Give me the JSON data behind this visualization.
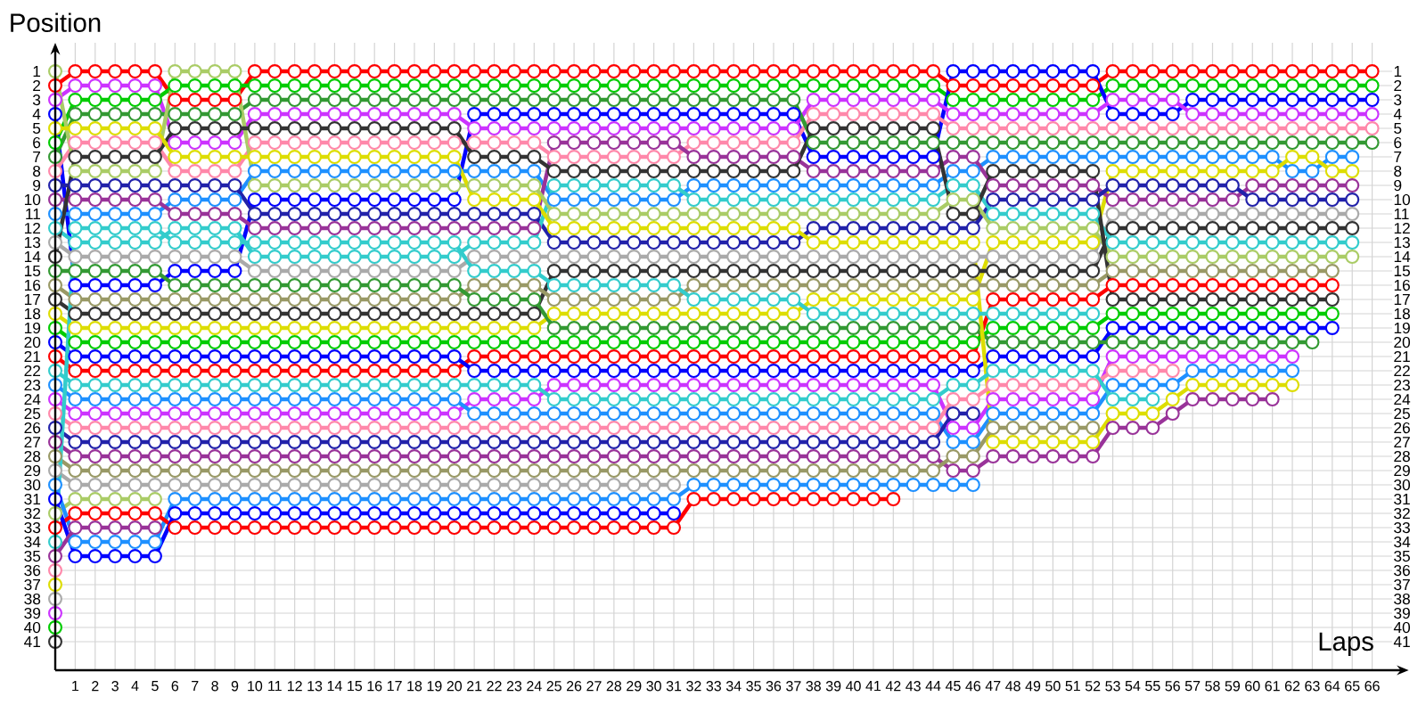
{
  "chart_data": {
    "type": "line",
    "xlabel": "Laps",
    "ylabel": "Position",
    "x": [
      0,
      1,
      2,
      3,
      4,
      5,
      6,
      7,
      8,
      9,
      10,
      11,
      12,
      13,
      14,
      15,
      16,
      17,
      18,
      19,
      20,
      21,
      22,
      23,
      24,
      25,
      26,
      27,
      28,
      29,
      30,
      31,
      32,
      33,
      34,
      35,
      36,
      37,
      38,
      39,
      40,
      41,
      42,
      43,
      44,
      45,
      46,
      47,
      48,
      49,
      50,
      51,
      52,
      53,
      54,
      55,
      56,
      57,
      58,
      59,
      60,
      61,
      62,
      63,
      64,
      65,
      66
    ],
    "xlim": [
      0,
      67
    ],
    "xticks": [
      1,
      2,
      3,
      4,
      5,
      6,
      7,
      8,
      9,
      10,
      11,
      12,
      13,
      14,
      15,
      16,
      17,
      18,
      19,
      20,
      21,
      22,
      23,
      24,
      25,
      26,
      27,
      28,
      29,
      30,
      31,
      32,
      33,
      34,
      35,
      36,
      37,
      38,
      39,
      40,
      41,
      42,
      43,
      44,
      45,
      46,
      47,
      48,
      49,
      50,
      51,
      52,
      53,
      54,
      55,
      56,
      57,
      58,
      59,
      60,
      61,
      62,
      63,
      64,
      65,
      66
    ],
    "ylim": [
      43,
      -1
    ],
    "yticks": [
      1,
      2,
      3,
      4,
      5,
      6,
      7,
      8,
      9,
      10,
      11,
      12,
      13,
      14,
      15,
      16,
      17,
      18,
      19,
      20,
      21,
      22,
      23,
      24,
      25,
      26,
      27,
      28,
      29,
      30,
      31,
      32,
      33,
      34,
      35,
      36,
      37,
      38,
      39,
      40,
      41
    ],
    "y2lim": [
      43,
      -1
    ],
    "y2ticks": [
      1,
      2,
      3,
      4,
      5,
      6,
      7,
      8,
      9,
      10,
      11,
      12,
      13,
      14,
      15,
      16,
      17,
      18,
      19,
      20,
      21,
      22,
      23,
      24,
      25,
      26,
      27,
      28,
      29,
      30,
      31,
      32,
      33,
      34,
      35,
      36,
      37,
      38,
      39,
      40,
      41
    ],
    "grid": true,
    "marker": "circle",
    "line_style": "solid",
    "series": [
      {
        "color": "#ff0000",
        "values": [
          2,
          1,
          1,
          1,
          1,
          1,
          3,
          3,
          3,
          3,
          1,
          1,
          1,
          1,
          1,
          1,
          1,
          1,
          1,
          1,
          1,
          1,
          1,
          1,
          1,
          1,
          1,
          1,
          1,
          1,
          1,
          1,
          1,
          1,
          1,
          1,
          1,
          1,
          1,
          1,
          1,
          1,
          1,
          1,
          1,
          2,
          2,
          2,
          2,
          2,
          2,
          2,
          2,
          1,
          1,
          1,
          1,
          1,
          1,
          1,
          1,
          1,
          1,
          1,
          1,
          1,
          1
        ]
      },
      {
        "color": "#00cc00",
        "values": [
          6,
          3,
          3,
          3,
          3,
          3,
          2,
          2,
          2,
          2,
          2,
          2,
          2,
          2,
          2,
          2,
          2,
          2,
          2,
          2,
          2,
          2,
          2,
          2,
          2,
          2,
          2,
          2,
          2,
          2,
          2,
          2,
          2,
          2,
          2,
          2,
          2,
          2,
          2,
          2,
          2,
          2,
          2,
          2,
          2,
          3,
          3,
          3,
          3,
          3,
          3,
          3,
          3,
          2,
          2,
          2,
          2,
          2,
          2,
          2,
          2,
          2,
          2,
          2,
          2,
          2,
          2
        ]
      },
      {
        "color": "#0000ff",
        "values": [
          4,
          16,
          16,
          16,
          16,
          16,
          15,
          15,
          15,
          15,
          10,
          10,
          10,
          10,
          10,
          10,
          10,
          10,
          10,
          10,
          10,
          4,
          4,
          4,
          4,
          4,
          4,
          4,
          4,
          4,
          4,
          4,
          4,
          4,
          4,
          4,
          4,
          4,
          7,
          7,
          7,
          7,
          7,
          7,
          7,
          1,
          1,
          1,
          1,
          1,
          1,
          1,
          1,
          4,
          4,
          4,
          4,
          3,
          3,
          3,
          3,
          3,
          3,
          3,
          3,
          3,
          3
        ]
      },
      {
        "color": "#cc33ff",
        "values": [
          3,
          2,
          2,
          2,
          2,
          2,
          6,
          6,
          6,
          6,
          4,
          4,
          4,
          4,
          4,
          4,
          4,
          4,
          4,
          4,
          4,
          5,
          5,
          5,
          5,
          5,
          5,
          5,
          5,
          5,
          5,
          5,
          5,
          5,
          5,
          5,
          5,
          5,
          3,
          3,
          3,
          3,
          3,
          3,
          3,
          4,
          4,
          4,
          4,
          4,
          4,
          4,
          4,
          3,
          3,
          3,
          3,
          4,
          4,
          4,
          4,
          4,
          4,
          4,
          4,
          4,
          4
        ]
      },
      {
        "color": "#ff88aa",
        "values": [
          8,
          6,
          6,
          6,
          6,
          6,
          8,
          8,
          8,
          8,
          6,
          6,
          6,
          6,
          6,
          6,
          6,
          6,
          6,
          6,
          6,
          6,
          6,
          6,
          6,
          7,
          7,
          7,
          7,
          7,
          7,
          7,
          6,
          6,
          6,
          6,
          6,
          6,
          4,
          4,
          4,
          4,
          4,
          4,
          4,
          5,
          5,
          5,
          5,
          5,
          5,
          5,
          5,
          5,
          5,
          5,
          5,
          5,
          5,
          5,
          5,
          5,
          5,
          5,
          5,
          5,
          5
        ]
      },
      {
        "color": "#339933",
        "values": [
          7,
          4,
          4,
          4,
          4,
          4,
          4,
          4,
          4,
          4,
          3,
          3,
          3,
          3,
          3,
          3,
          3,
          3,
          3,
          3,
          3,
          3,
          3,
          3,
          3,
          3,
          3,
          3,
          3,
          3,
          3,
          3,
          3,
          3,
          3,
          3,
          3,
          3,
          6,
          6,
          6,
          6,
          6,
          6,
          6,
          6,
          6,
          6,
          6,
          6,
          6,
          6,
          6,
          6,
          6,
          6,
          6,
          6,
          6,
          6,
          6,
          6,
          6,
          6,
          6,
          6,
          6
        ]
      },
      {
        "color": "#1e90ff",
        "values": [
          11,
          11,
          11,
          11,
          11,
          11,
          10,
          10,
          10,
          10,
          8,
          8,
          8,
          8,
          8,
          8,
          8,
          8,
          8,
          8,
          8,
          8,
          8,
          8,
          8,
          10,
          10,
          10,
          10,
          10,
          10,
          10,
          9,
          9,
          9,
          9,
          9,
          9,
          9,
          9,
          9,
          9,
          9,
          9,
          9,
          8,
          8,
          7,
          7,
          7,
          7,
          7,
          7,
          7,
          7,
          7,
          7,
          7,
          7,
          7,
          7,
          7,
          8,
          8,
          7,
          7,
          null
        ]
      },
      {
        "color": "#dddd00",
        "values": [
          18,
          19,
          19,
          19,
          19,
          19,
          19,
          19,
          19,
          19,
          19,
          19,
          19,
          19,
          19,
          19,
          19,
          19,
          19,
          19,
          19,
          19,
          19,
          19,
          19,
          18,
          18,
          18,
          18,
          18,
          18,
          18,
          18,
          18,
          18,
          18,
          18,
          18,
          17,
          17,
          17,
          17,
          17,
          17,
          17,
          17,
          17,
          13,
          13,
          13,
          13,
          13,
          13,
          8,
          8,
          8,
          8,
          8,
          8,
          8,
          8,
          8,
          7,
          7,
          8,
          8,
          null
        ]
      },
      {
        "color": "#993399",
        "values": [
          10,
          10,
          10,
          10,
          10,
          10,
          11,
          11,
          11,
          11,
          12,
          12,
          12,
          12,
          12,
          12,
          12,
          12,
          12,
          12,
          12,
          12,
          12,
          12,
          12,
          6,
          6,
          6,
          6,
          6,
          6,
          6,
          7,
          7,
          7,
          7,
          7,
          7,
          8,
          8,
          8,
          8,
          8,
          8,
          8,
          7,
          7,
          9,
          9,
          9,
          9,
          9,
          9,
          10,
          10,
          10,
          10,
          10,
          10,
          10,
          9,
          9,
          9,
          9,
          9,
          9,
          null
        ]
      },
      {
        "color": "#2222aa",
        "values": [
          9,
          9,
          9,
          9,
          9,
          9,
          9,
          9,
          9,
          9,
          11,
          11,
          11,
          11,
          11,
          11,
          11,
          11,
          11,
          11,
          11,
          11,
          11,
          11,
          11,
          13,
          13,
          13,
          13,
          13,
          13,
          13,
          13,
          13,
          13,
          13,
          13,
          13,
          12,
          12,
          12,
          12,
          12,
          12,
          12,
          12,
          12,
          10,
          10,
          10,
          10,
          10,
          10,
          9,
          9,
          9,
          9,
          9,
          9,
          9,
          10,
          10,
          10,
          10,
          10,
          10,
          null
        ]
      },
      {
        "color": "#aaaaaa",
        "values": [
          13,
          14,
          14,
          14,
          14,
          14,
          14,
          14,
          14,
          14,
          15,
          15,
          15,
          15,
          15,
          15,
          15,
          15,
          15,
          15,
          15,
          14,
          14,
          14,
          14,
          14,
          14,
          14,
          14,
          14,
          14,
          14,
          14,
          14,
          14,
          14,
          14,
          14,
          14,
          14,
          14,
          14,
          14,
          14,
          14,
          14,
          14,
          14,
          14,
          14,
          14,
          14,
          14,
          11,
          11,
          11,
          11,
          11,
          11,
          11,
          11,
          11,
          11,
          11,
          11,
          11,
          null
        ]
      },
      {
        "color": "#333333",
        "values": [
          17,
          18,
          18,
          18,
          18,
          18,
          18,
          18,
          18,
          18,
          18,
          18,
          18,
          18,
          18,
          18,
          18,
          18,
          18,
          18,
          18,
          18,
          18,
          18,
          18,
          15,
          15,
          15,
          15,
          15,
          15,
          15,
          15,
          15,
          15,
          15,
          15,
          15,
          15,
          15,
          15,
          15,
          15,
          15,
          15,
          15,
          15,
          15,
          15,
          15,
          15,
          15,
          15,
          12,
          12,
          12,
          12,
          12,
          12,
          12,
          12,
          12,
          12,
          12,
          12,
          12,
          null
        ]
      },
      {
        "color": "#33cccc",
        "values": [
          12,
          13,
          13,
          13,
          13,
          13,
          12,
          12,
          12,
          12,
          14,
          14,
          14,
          14,
          14,
          14,
          14,
          14,
          14,
          14,
          14,
          13,
          13,
          13,
          13,
          9,
          9,
          9,
          9,
          9,
          9,
          9,
          10,
          10,
          10,
          10,
          10,
          10,
          10,
          10,
          10,
          10,
          10,
          10,
          10,
          9,
          9,
          11,
          11,
          11,
          11,
          11,
          11,
          13,
          13,
          13,
          13,
          13,
          13,
          13,
          13,
          13,
          13,
          13,
          13,
          13,
          null
        ]
      },
      {
        "color": "#aacc66",
        "values": [
          1,
          8,
          8,
          8,
          8,
          8,
          1,
          1,
          1,
          1,
          9,
          9,
          9,
          9,
          9,
          9,
          9,
          9,
          9,
          9,
          9,
          9,
          9,
          9,
          9,
          11,
          11,
          11,
          11,
          11,
          11,
          11,
          11,
          11,
          11,
          11,
          11,
          11,
          11,
          11,
          11,
          11,
          11,
          11,
          11,
          10,
          10,
          12,
          12,
          12,
          12,
          12,
          12,
          14,
          14,
          14,
          14,
          14,
          14,
          14,
          14,
          14,
          14,
          14,
          14,
          14,
          null
        ]
      },
      {
        "color": "#999966",
        "values": [
          16,
          17,
          17,
          17,
          17,
          17,
          17,
          17,
          17,
          17,
          17,
          17,
          17,
          17,
          17,
          17,
          17,
          17,
          17,
          17,
          17,
          16,
          16,
          16,
          16,
          17,
          17,
          17,
          17,
          17,
          17,
          17,
          16,
          16,
          16,
          16,
          16,
          16,
          16,
          16,
          16,
          16,
          16,
          16,
          16,
          16,
          16,
          16,
          16,
          16,
          16,
          16,
          16,
          15,
          15,
          15,
          15,
          15,
          15,
          15,
          15,
          15,
          15,
          15,
          15,
          null,
          null
        ]
      },
      {
        "color": "#ff0000",
        "values": [
          21,
          22,
          22,
          22,
          22,
          22,
          22,
          22,
          22,
          22,
          22,
          22,
          22,
          22,
          22,
          22,
          22,
          22,
          22,
          22,
          22,
          21,
          21,
          21,
          21,
          21,
          21,
          21,
          21,
          21,
          21,
          21,
          21,
          21,
          21,
          21,
          21,
          21,
          21,
          21,
          21,
          21,
          21,
          21,
          21,
          21,
          21,
          17,
          17,
          17,
          17,
          17,
          17,
          16,
          16,
          16,
          16,
          16,
          16,
          16,
          16,
          16,
          16,
          16,
          16,
          null,
          null
        ]
      },
      {
        "color": "#333333",
        "values": [
          14,
          7,
          7,
          7,
          7,
          7,
          5,
          5,
          5,
          5,
          5,
          5,
          5,
          5,
          5,
          5,
          5,
          5,
          5,
          5,
          5,
          7,
          7,
          7,
          7,
          8,
          8,
          8,
          8,
          8,
          8,
          8,
          8,
          8,
          8,
          8,
          8,
          8,
          5,
          5,
          5,
          5,
          5,
          5,
          5,
          11,
          11,
          8,
          8,
          8,
          8,
          8,
          8,
          17,
          17,
          17,
          17,
          17,
          17,
          17,
          17,
          17,
          17,
          17,
          17,
          null,
          null
        ]
      },
      {
        "color": "#00cc00",
        "values": [
          19,
          20,
          20,
          20,
          20,
          20,
          20,
          20,
          20,
          20,
          20,
          20,
          20,
          20,
          20,
          20,
          20,
          20,
          20,
          20,
          20,
          20,
          20,
          20,
          20,
          20,
          20,
          20,
          20,
          20,
          20,
          20,
          20,
          20,
          20,
          20,
          20,
          20,
          20,
          20,
          20,
          20,
          20,
          20,
          20,
          20,
          20,
          19,
          19,
          19,
          19,
          19,
          19,
          18,
          18,
          18,
          18,
          18,
          18,
          18,
          18,
          18,
          18,
          18,
          18,
          null,
          null
        ]
      },
      {
        "color": "#0000ff",
        "values": [
          20,
          21,
          21,
          21,
          21,
          21,
          21,
          21,
          21,
          21,
          21,
          21,
          21,
          21,
          21,
          21,
          21,
          21,
          21,
          21,
          21,
          22,
          22,
          22,
          22,
          22,
          22,
          22,
          22,
          22,
          22,
          22,
          22,
          22,
          22,
          22,
          22,
          22,
          22,
          22,
          22,
          22,
          22,
          22,
          22,
          22,
          22,
          21,
          21,
          21,
          21,
          21,
          21,
          19,
          19,
          19,
          19,
          19,
          19,
          19,
          19,
          19,
          19,
          19,
          19,
          null,
          null
        ]
      },
      {
        "color": "#339933",
        "values": [
          15,
          15,
          15,
          15,
          15,
          15,
          16,
          16,
          16,
          16,
          16,
          16,
          16,
          16,
          16,
          16,
          16,
          16,
          16,
          16,
          16,
          17,
          17,
          17,
          17,
          19,
          19,
          19,
          19,
          19,
          19,
          19,
          19,
          19,
          19,
          19,
          19,
          19,
          19,
          19,
          19,
          19,
          19,
          19,
          19,
          19,
          19,
          20,
          20,
          20,
          20,
          20,
          20,
          20,
          20,
          20,
          20,
          20,
          20,
          20,
          20,
          20,
          20,
          20,
          null,
          null,
          null
        ]
      },
      {
        "color": "#cc33ff",
        "values": [
          24,
          25,
          25,
          25,
          25,
          25,
          25,
          25,
          25,
          25,
          25,
          25,
          25,
          25,
          25,
          25,
          25,
          25,
          25,
          25,
          25,
          24,
          24,
          24,
          24,
          23,
          23,
          23,
          23,
          23,
          23,
          23,
          23,
          23,
          23,
          23,
          23,
          23,
          23,
          23,
          23,
          23,
          23,
          23,
          23,
          26,
          26,
          24,
          24,
          24,
          24,
          24,
          24,
          21,
          21,
          21,
          21,
          21,
          21,
          21,
          21,
          21,
          21,
          null,
          null,
          null,
          null
        ]
      },
      {
        "color": "#1e90ff",
        "values": [
          23,
          24,
          24,
          24,
          24,
          24,
          24,
          24,
          24,
          24,
          24,
          24,
          24,
          24,
          24,
          24,
          24,
          24,
          24,
          24,
          24,
          25,
          25,
          25,
          25,
          25,
          25,
          25,
          25,
          25,
          25,
          25,
          25,
          25,
          25,
          25,
          25,
          25,
          25,
          25,
          25,
          25,
          25,
          25,
          25,
          27,
          27,
          25,
          25,
          25,
          25,
          25,
          25,
          23,
          23,
          23,
          23,
          22,
          22,
          22,
          22,
          22,
          22,
          null,
          null,
          null,
          null
        ]
      },
      {
        "color": "#dddd00",
        "values": [
          5,
          5,
          5,
          5,
          5,
          5,
          7,
          7,
          7,
          7,
          7,
          7,
          7,
          7,
          7,
          7,
          7,
          7,
          7,
          7,
          7,
          10,
          10,
          10,
          10,
          12,
          12,
          12,
          12,
          12,
          12,
          12,
          12,
          12,
          12,
          12,
          12,
          12,
          13,
          13,
          13,
          13,
          13,
          13,
          13,
          13,
          13,
          27,
          27,
          27,
          27,
          27,
          27,
          25,
          25,
          25,
          24,
          23,
          23,
          23,
          23,
          23,
          23,
          null,
          null,
          null,
          null
        ]
      },
      {
        "color": "#993399",
        "values": [
          27,
          28,
          28,
          28,
          28,
          28,
          28,
          28,
          28,
          28,
          28,
          28,
          28,
          28,
          28,
          28,
          28,
          28,
          28,
          28,
          28,
          28,
          28,
          28,
          28,
          28,
          28,
          28,
          28,
          28,
          28,
          28,
          28,
          28,
          28,
          28,
          28,
          28,
          28,
          28,
          28,
          28,
          28,
          28,
          28,
          29,
          29,
          28,
          28,
          28,
          28,
          28,
          28,
          26,
          26,
          26,
          25,
          24,
          24,
          24,
          24,
          24,
          null,
          null,
          null,
          null,
          null
        ]
      },
      {
        "color": "#ff88aa",
        "values": [
          25,
          26,
          26,
          26,
          26,
          26,
          26,
          26,
          26,
          26,
          26,
          26,
          26,
          26,
          26,
          26,
          26,
          26,
          26,
          26,
          26,
          26,
          26,
          26,
          26,
          26,
          26,
          26,
          26,
          26,
          26,
          26,
          26,
          26,
          26,
          26,
          26,
          26,
          26,
          26,
          26,
          26,
          26,
          26,
          26,
          24,
          24,
          23,
          23,
          23,
          23,
          23,
          23,
          22,
          22,
          22,
          22,
          null,
          null,
          null,
          null,
          null,
          null,
          null,
          null,
          null,
          null
        ]
      },
      {
        "color": "#2222aa",
        "values": [
          26,
          27,
          27,
          27,
          27,
          27,
          27,
          27,
          27,
          27,
          27,
          27,
          27,
          27,
          27,
          27,
          27,
          27,
          27,
          27,
          27,
          27,
          27,
          27,
          27,
          27,
          27,
          27,
          27,
          27,
          27,
          27,
          27,
          27,
          27,
          27,
          27,
          27,
          27,
          27,
          27,
          27,
          27,
          27,
          27,
          25,
          25,
          null,
          null,
          null,
          null,
          null,
          null,
          null,
          null,
          null,
          null,
          null,
          null,
          null,
          null,
          null,
          null,
          null,
          null,
          null,
          null
        ]
      },
      {
        "color": "#33cccc",
        "values": [
          22,
          23,
          23,
          23,
          23,
          23,
          23,
          23,
          23,
          23,
          23,
          23,
          23,
          23,
          23,
          23,
          23,
          23,
          23,
          23,
          23,
          23,
          23,
          23,
          23,
          24,
          24,
          24,
          24,
          24,
          24,
          24,
          24,
          24,
          24,
          24,
          24,
          24,
          24,
          24,
          24,
          24,
          24,
          24,
          24,
          23,
          23,
          22,
          22,
          22,
          22,
          22,
          22,
          24,
          24,
          24,
          null,
          null,
          null,
          null,
          null,
          null,
          null,
          null,
          null,
          null,
          null
        ]
      },
      {
        "color": "#999966",
        "values": [
          28,
          29,
          29,
          29,
          29,
          29,
          29,
          29,
          29,
          29,
          29,
          29,
          29,
          29,
          29,
          29,
          29,
          29,
          29,
          29,
          29,
          29,
          29,
          29,
          29,
          29,
          29,
          29,
          29,
          29,
          29,
          29,
          29,
          29,
          29,
          29,
          29,
          29,
          29,
          29,
          29,
          29,
          29,
          29,
          29,
          28,
          28,
          26,
          26,
          26,
          26,
          26,
          26,
          null,
          null,
          null,
          null,
          null,
          null,
          null,
          null,
          null,
          null,
          null,
          null,
          null,
          null
        ]
      },
      {
        "color": "#aaaaaa",
        "values": [
          29,
          30,
          30,
          30,
          30,
          30,
          30,
          30,
          30,
          30,
          30,
          30,
          30,
          30,
          30,
          30,
          30,
          30,
          30,
          30,
          30,
          30,
          30,
          30,
          30,
          30,
          30,
          30,
          30,
          30,
          30,
          30,
          null,
          null,
          null,
          null,
          null,
          null,
          null,
          null,
          null,
          null,
          null,
          null,
          null,
          null,
          null,
          null,
          null,
          null,
          null,
          null,
          null,
          null,
          null,
          null,
          null,
          null,
          null,
          null,
          null,
          null,
          null,
          null,
          null,
          null,
          null
        ]
      },
      {
        "color": "#aacc66",
        "x": [
          0,
          1,
          2,
          3,
          4,
          5
        ],
        "values": [
          32,
          31,
          31,
          31,
          31,
          31
        ]
      },
      {
        "color": "#33cccc",
        "values": [
          34,
          12,
          12,
          12,
          12,
          12,
          13,
          13,
          13,
          13,
          13,
          13,
          13,
          13,
          13,
          13,
          13,
          13,
          13,
          13,
          13,
          15,
          15,
          15,
          15,
          16,
          16,
          16,
          16,
          16,
          16,
          16,
          17,
          17,
          17,
          17,
          17,
          17,
          18,
          18,
          18,
          18,
          18,
          18,
          18,
          18,
          18,
          18,
          18,
          18,
          18,
          18,
          18,
          null,
          null,
          null,
          null,
          null,
          null,
          null,
          null,
          null,
          null,
          null,
          null,
          null,
          null
        ]
      },
      {
        "color": "#1e90ff",
        "values": [
          30,
          34,
          34,
          34,
          34,
          34,
          31,
          31,
          31,
          31,
          31,
          31,
          31,
          31,
          31,
          31,
          31,
          31,
          31,
          31,
          31,
          31,
          31,
          31,
          31,
          31,
          31,
          31,
          31,
          31,
          31,
          31,
          30,
          30,
          30,
          30,
          30,
          30,
          30,
          30,
          30,
          30,
          30,
          30,
          30,
          30,
          30,
          null,
          null,
          null,
          null,
          null,
          null,
          null,
          null,
          null,
          null,
          null,
          null,
          null,
          null,
          null,
          null,
          null,
          null,
          null,
          null
        ]
      },
      {
        "color": "#ff0000",
        "values": [
          33,
          32,
          32,
          32,
          32,
          32,
          33,
          33,
          33,
          33,
          33,
          33,
          33,
          33,
          33,
          33,
          33,
          33,
          33,
          33,
          33,
          33,
          33,
          33,
          33,
          33,
          33,
          33,
          33,
          33,
          33,
          33,
          31,
          31,
          31,
          31,
          31,
          31,
          31,
          31,
          31,
          31,
          31,
          null,
          null,
          null,
          null,
          null,
          null,
          null,
          null,
          null,
          null,
          null,
          null,
          null,
          null,
          null,
          null,
          null,
          null,
          null,
          null,
          null,
          null,
          null,
          null
        ]
      },
      {
        "color": "#0000ff",
        "values": [
          31,
          35,
          35,
          35,
          35,
          35,
          32,
          32,
          32,
          32,
          32,
          32,
          32,
          32,
          32,
          32,
          32,
          32,
          32,
          32,
          32,
          32,
          32,
          32,
          32,
          32,
          32,
          32,
          32,
          32,
          32,
          32,
          null,
          null,
          null,
          null,
          null,
          null,
          null,
          null,
          null,
          null,
          null,
          null,
          null,
          null,
          null,
          null,
          null,
          null,
          null,
          null,
          null,
          null,
          null,
          null,
          null,
          null,
          null,
          null,
          null,
          null,
          null,
          null,
          null,
          null,
          null
        ]
      },
      {
        "color": "#993399",
        "x": [
          0,
          1,
          2,
          3,
          4,
          5
        ],
        "values": [
          35,
          33,
          33,
          33,
          33,
          33
        ]
      },
      {
        "color": "#ff88aa",
        "x": [
          0
        ],
        "values": [
          36
        ]
      },
      {
        "color": "#dddd00",
        "x": [
          0
        ],
        "values": [
          37
        ]
      },
      {
        "color": "#aaaaaa",
        "x": [
          0
        ],
        "values": [
          38
        ]
      },
      {
        "color": "#cc33ff",
        "x": [
          0
        ],
        "values": [
          39
        ]
      },
      {
        "color": "#00cc00",
        "x": [
          0
        ],
        "values": [
          40
        ]
      },
      {
        "color": "#333333",
        "x": [
          0
        ],
        "values": [
          41
        ]
      }
    ]
  }
}
